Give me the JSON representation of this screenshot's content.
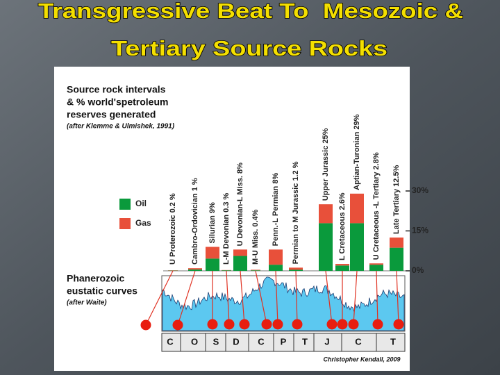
{
  "title": [
    "Transgressive Beat To  Mesozoic &",
    "Tertiary Source Rocks"
  ],
  "chart_data": {
    "type": "bar",
    "stacked": true,
    "heading": [
      "Source rock intervals",
      "& % world'spetroleum",
      "reserves generated"
    ],
    "source": "(after Klemme & Ulmishek, 1991)",
    "categories": [
      "U Proterozoic 0.2 %",
      "Cambro-Ordovician  1 %",
      "Silurian  9%",
      "L-M Devonian 0.3 %",
      "U Devonian-L Miss.  8%",
      "M-U Miss. 0.4%",
      "Penn.-L Permian  8%",
      "Permian to M Jurassic 1.2 %",
      "Upper Jurassic  25%",
      "L Cretaceous 2.6%",
      "Aptian-Turonian  29%",
      "U Cretaceous -L Tertiary 2.8%",
      "Late Tertiary 12.5%"
    ],
    "series": [
      {
        "name": "Oil",
        "color": "#0a9a3c",
        "values": [
          0.1,
          0.5,
          4.6,
          0.2,
          5.6,
          0.2,
          2.3,
          0.4,
          17.9,
          2.0,
          17.9,
          2.3,
          8.7
        ]
      },
      {
        "name": "Gas",
        "color": "#e8503a",
        "values": [
          0.1,
          0.5,
          4.4,
          0.1,
          2.4,
          0.2,
          5.7,
          0.8,
          7.1,
          0.6,
          11.1,
          0.5,
          3.8
        ]
      }
    ],
    "ylim": [
      0,
      30
    ],
    "yticks": [
      {
        "value": 0,
        "label": "0%"
      },
      {
        "value": 15,
        "label": "15%"
      },
      {
        "value": 30,
        "label": "30%"
      }
    ],
    "eustatic_title": [
      "Phanerozoic",
      "eustatic curves"
    ],
    "eustatic_source": "(after Waite)",
    "periods": [
      "C",
      "O",
      "S",
      "D",
      "C",
      "P",
      "T",
      "J",
      "C",
      "T"
    ],
    "credit": "Christopher Kendall, 2009"
  }
}
